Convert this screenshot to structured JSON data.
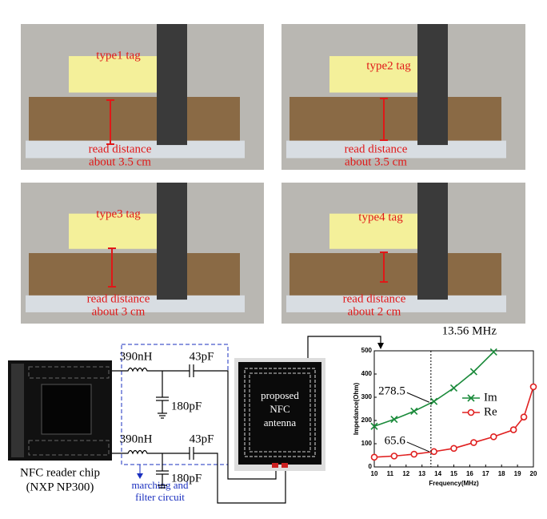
{
  "photos": [
    {
      "tag": "type1 tag",
      "distance_label": "read distance",
      "distance": "about 3.5 cm"
    },
    {
      "tag": "type2 tag",
      "distance_label": "read distance",
      "distance": "about 3.5 cm"
    },
    {
      "tag": "type3 tag",
      "distance_label": "read distance",
      "distance": "about 3 cm"
    },
    {
      "tag": "type4 tag",
      "distance_label": "read distance",
      "distance": "about 2 cm"
    }
  ],
  "chip": {
    "label": [
      "NFC reader chip",
      "(NXP NP300)"
    ]
  },
  "circuit": {
    "inductors": [
      "390nH",
      "390nH"
    ],
    "series_caps": [
      "43pF",
      "43pF"
    ],
    "shunt_caps": [
      "180pF",
      "180pF"
    ],
    "filter_label": [
      "marching and",
      "filter circuit"
    ]
  },
  "antenna": {
    "label": [
      "proposed",
      "NFC",
      "antenna"
    ]
  },
  "chart_data": {
    "type": "line",
    "xlabel": "Frequency(MHz)",
    "ylabel": "Impedance(Ohm)",
    "xlim": [
      10,
      20
    ],
    "ylim": [
      0,
      500
    ],
    "xticks": [
      10,
      11,
      12,
      13,
      14,
      15,
      16,
      17,
      18,
      19,
      20
    ],
    "yticks": [
      0,
      100,
      200,
      300,
      400,
      500
    ],
    "series": [
      {
        "name": "Im",
        "color": "#1a8a3a",
        "marker": "x",
        "x": [
          10,
          11.25,
          12.5,
          13.75,
          15,
          16.25,
          17.5
        ],
        "values": [
          175,
          205,
          240,
          282,
          340,
          410,
          495
        ]
      },
      {
        "name": "Re",
        "color": "#e02020",
        "marker": "o",
        "x": [
          10,
          11.25,
          12.5,
          13.75,
          15,
          16.25,
          17.5,
          18.75,
          19.4,
          20
        ],
        "values": [
          42,
          47,
          55,
          66,
          80,
          105,
          130,
          160,
          215,
          345
        ]
      }
    ],
    "annotations": [
      {
        "label": "13.56 MHz",
        "x": 13.56
      },
      {
        "label": "278.5",
        "x": 13.56,
        "y": 278.5
      },
      {
        "label": "65.6",
        "x": 13.56,
        "y": 65.6
      }
    ]
  }
}
